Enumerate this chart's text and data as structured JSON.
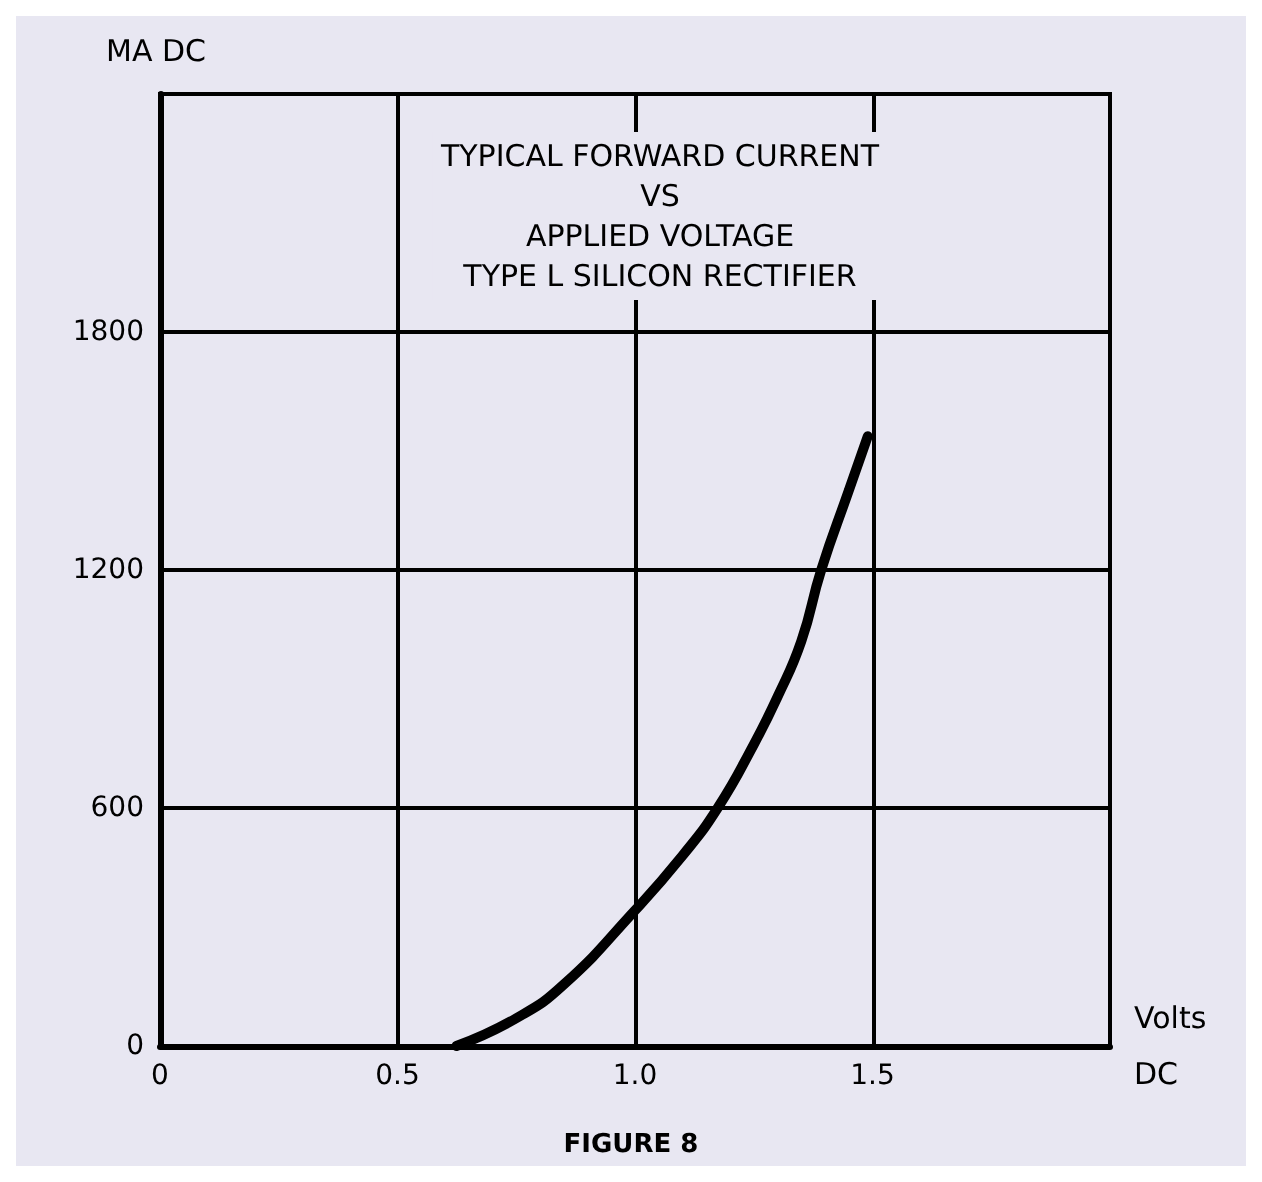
{
  "chart_data": {
    "type": "line",
    "title": "TYPICAL FORWARD CURRENT\nVS\nAPPLIED VOLTAGE\nTYPE L SILICON RECTIFIER",
    "xlabel": "Volts\nDC",
    "ylabel": "MA DC",
    "annotations": [
      "FIGURE 8"
    ],
    "x": [
      0.624,
      0.75,
      0.85,
      1.0,
      1.1,
      1.174,
      1.25,
      1.3,
      1.35,
      1.392,
      1.45,
      1.49
    ],
    "values": [
      0,
      70,
      155,
      342,
      480,
      600,
      760,
      880,
      1020,
      1200,
      1400,
      1537
    ],
    "color": "#000000",
    "xlim": [
      0,
      2
    ],
    "xticks": [
      0,
      0.5,
      {
        "value": 1,
        "label": "1.0"
      },
      1.5,
      {
        "value": 2,
        "label": null
      }
    ],
    "ylim": [
      0,
      2400
    ],
    "yticks": [
      0,
      600,
      1200,
      1800,
      {
        "value": 2400,
        "label": null
      }
    ],
    "grid": true
  }
}
